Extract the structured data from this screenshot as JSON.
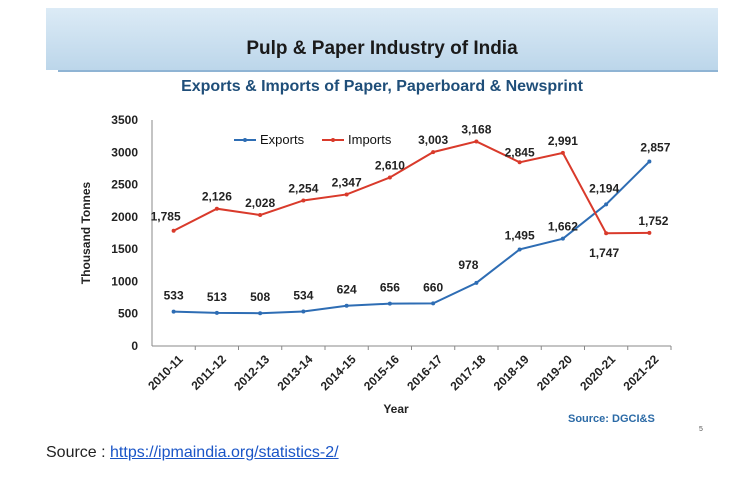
{
  "slide": {
    "banner_title": "Pulp & Paper Industry of India",
    "subtitle": "Exports & Imports of Paper, Paperboard & Newsprint",
    "source_note": "Source: DGCI&S",
    "page_number": "5"
  },
  "footer": {
    "label": "Source : ",
    "link_text": "https://ipmaindia.org/statistics-2/"
  },
  "colors": {
    "exports": "#2e6db4",
    "imports": "#d93a2b",
    "banner": "#c7dcee"
  },
  "chart_data": {
    "type": "line",
    "title": "Exports & Imports of Paper, Paperboard & Newsprint",
    "xlabel": "Year",
    "ylabel": "Thousand Tonnes",
    "ylim": [
      0,
      3500
    ],
    "yticks": [
      0,
      500,
      1000,
      1500,
      2000,
      2500,
      3000,
      3500
    ],
    "grid": false,
    "legend_position": "top",
    "categories": [
      "2010-11",
      "2011-12",
      "2012-13",
      "2013-14",
      "2014-15",
      "2015-16",
      "2016-17",
      "2017-18",
      "2018-19",
      "2019-20",
      "2020-21",
      "2021-22"
    ],
    "series": [
      {
        "name": "Exports",
        "values": [
          533,
          513,
          508,
          534,
          624,
          656,
          660,
          978,
          1495,
          1662,
          2194,
          2857
        ],
        "labels": [
          "533",
          "513",
          "508",
          "534",
          "624",
          "656",
          "660",
          "978",
          "1,495",
          "1,662",
          "2,194",
          "2,857"
        ]
      },
      {
        "name": "Imports",
        "values": [
          1785,
          2126,
          2028,
          2254,
          2347,
          2610,
          3003,
          3168,
          2845,
          2991,
          1747,
          1752
        ],
        "labels": [
          "1,785",
          "2,126",
          "2,028",
          "2,254",
          "2,347",
          "2,610",
          "3,003",
          "3,168",
          "2,845",
          "2,991",
          "1,747",
          "1,752"
        ]
      }
    ]
  }
}
